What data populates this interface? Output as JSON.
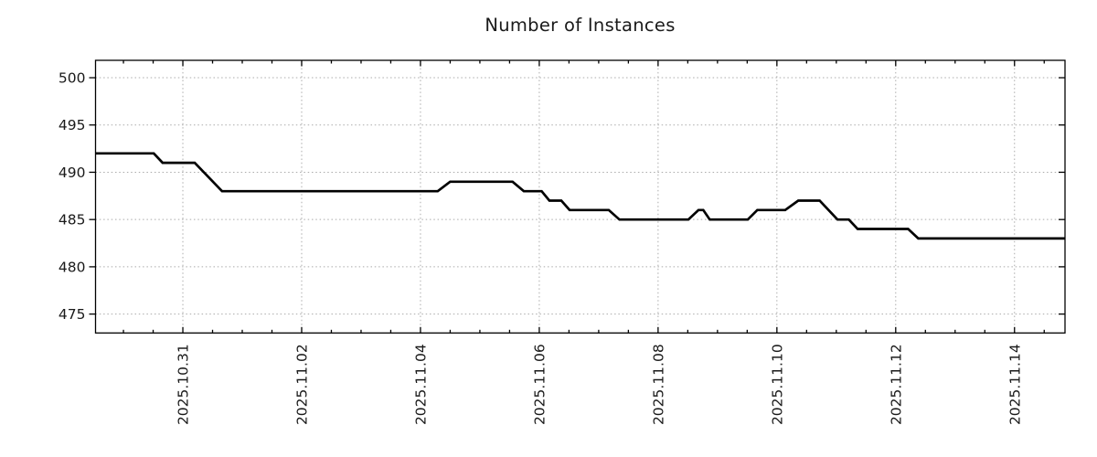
{
  "title": "Number of Instances",
  "colors": {
    "background": "#ffffff",
    "line": "#000000",
    "grid": "#ababab",
    "axis": "#000000",
    "text": "#1a1a1a"
  },
  "chart_data": {
    "type": "line",
    "title": "Number of Instances",
    "xlabel": "",
    "ylabel": "",
    "grid": "dotted",
    "legend": "none",
    "x_axis": {
      "unit": "days since 2025.10.31 00:00",
      "range": [
        -1.47,
        14.85
      ],
      "major_ticks": [
        0,
        2,
        4,
        6,
        8,
        10,
        12,
        14
      ],
      "tick_labels": [
        "2025.10.31",
        "2025.11.02",
        "2025.11.04",
        "2025.11.06",
        "2025.11.08",
        "2025.11.10",
        "2025.11.12",
        "2025.11.14"
      ],
      "minor_tick_interval": 0.5
    },
    "y_axis": {
      "range": [
        473.0,
        501.84
      ],
      "ticks": [
        475,
        480,
        485,
        490,
        495,
        500
      ],
      "tick_labels": [
        "475",
        "480",
        "485",
        "490",
        "495",
        "500"
      ]
    },
    "series": [
      {
        "name": "number-of-instances",
        "color": "#000000",
        "points": [
          [
            -1.47,
            492
          ],
          [
            -0.49,
            492
          ],
          [
            -0.34,
            491
          ],
          [
            0.2,
            491
          ],
          [
            0.66,
            488
          ],
          [
            4.29,
            488
          ],
          [
            4.5,
            489
          ],
          [
            5.55,
            489
          ],
          [
            5.74,
            488
          ],
          [
            6.04,
            488
          ],
          [
            6.17,
            487
          ],
          [
            6.37,
            487
          ],
          [
            6.51,
            486
          ],
          [
            7.17,
            486
          ],
          [
            7.35,
            485
          ],
          [
            8.51,
            485
          ],
          [
            8.68,
            486
          ],
          [
            8.76,
            486
          ],
          [
            8.87,
            485
          ],
          [
            9.51,
            485
          ],
          [
            9.67,
            486
          ],
          [
            10.14,
            486
          ],
          [
            10.36,
            487
          ],
          [
            10.72,
            487
          ],
          [
            11.02,
            485
          ],
          [
            11.21,
            485
          ],
          [
            11.36,
            484
          ],
          [
            12.21,
            484
          ],
          [
            12.38,
            483
          ],
          [
            14.85,
            483
          ]
        ]
      }
    ]
  }
}
